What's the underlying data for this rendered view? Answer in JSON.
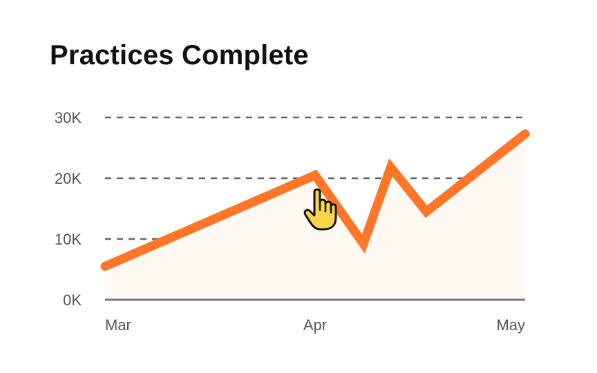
{
  "chart_data": {
    "type": "area",
    "title": "Practices Complete",
    "xlabel": "",
    "ylabel": "",
    "x_ticks": [
      {
        "label": "Mar",
        "value": 0
      },
      {
        "label": "Apr",
        "value": 1
      },
      {
        "label": "May",
        "value": 2
      }
    ],
    "x_range": [
      0,
      2
    ],
    "y_ticks": [
      {
        "label": "0K",
        "value": 0
      },
      {
        "label": "10K",
        "value": 10000
      },
      {
        "label": "20K",
        "value": 20000
      },
      {
        "label": "30K",
        "value": 30000
      }
    ],
    "ylim": [
      0,
      30000
    ],
    "grid": true,
    "series": [
      {
        "points": [
          {
            "x": 0,
            "y": 5500
          },
          {
            "x": 1,
            "y": 20500
          },
          {
            "x": 1.23,
            "y": 9200
          },
          {
            "x": 1.36,
            "y": 21800
          },
          {
            "x": 1.53,
            "y": 14500
          },
          {
            "x": 2,
            "y": 27300
          }
        ]
      }
    ],
    "colors": {
      "line": "#FF7629",
      "area": "#FFF8F3",
      "grid": "#666666",
      "axis": "#777777",
      "cursor_fill": "#FBD54A",
      "cursor_stroke": "#111111"
    },
    "cursor_icon": "hand-pointer-icon"
  }
}
